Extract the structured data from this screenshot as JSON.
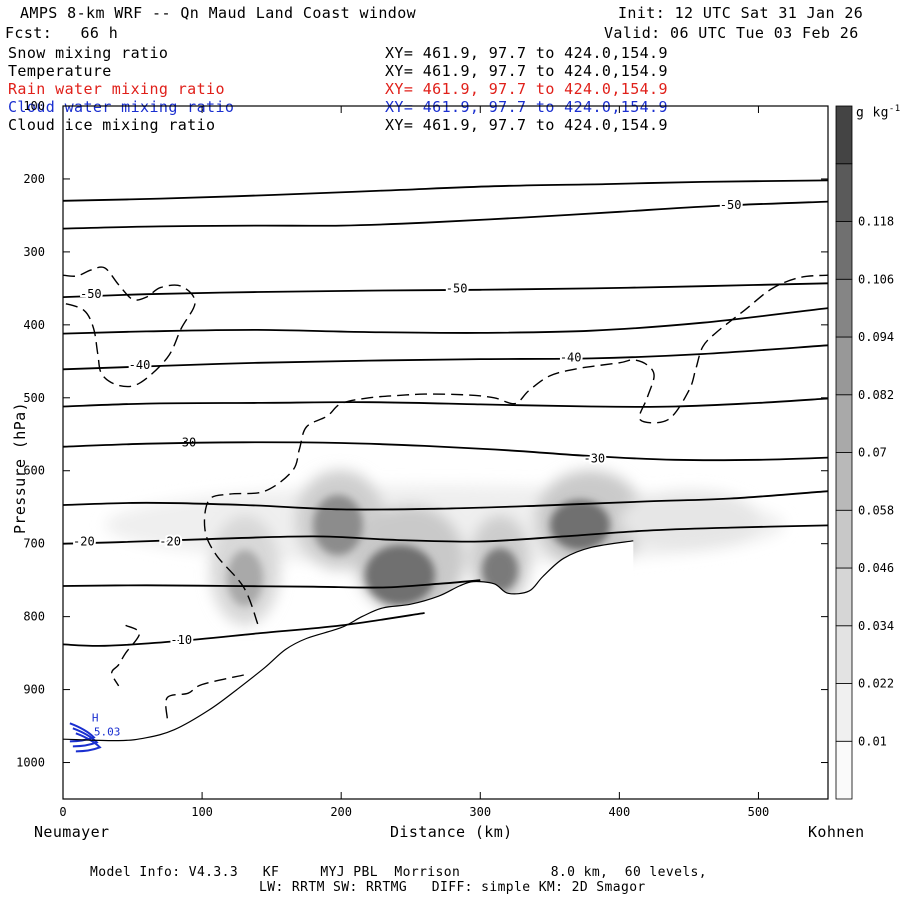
{
  "header": {
    "title": "AMPS 8-km WRF -- Qn Maud Land Coast window",
    "init": "Init: 12 UTC Sat 31 Jan 26",
    "fcst": "Fcst:   66 h",
    "valid": "Valid: 06 UTC Tue 03 Feb 26"
  },
  "fields": [
    {
      "name": "Snow mixing ratio",
      "xy": "XY= 461.9, 97.7 to 424.0,154.9",
      "color": "#000000"
    },
    {
      "name": "Temperature",
      "xy": "XY= 461.9, 97.7 to 424.0,154.9",
      "color": "#000000"
    },
    {
      "name": "Rain water mixing ratio",
      "xy": "XY= 461.9, 97.7 to 424.0,154.9",
      "color": "#e0201a"
    },
    {
      "name": "Cloud water mixing ratio",
      "xy": "XY= 461.9, 97.7 to 424.0,154.9",
      "color": "#1a2fd0"
    },
    {
      "name": "Cloud ice mixing ratio",
      "xy": "XY= 461.9, 97.7 to 424.0,154.9",
      "color": "#000000"
    }
  ],
  "footer": {
    "line1": "Model Info: V4.3.3   KF     MYJ PBL  Morrison           8.0 km,  60 levels,",
    "line2": "LW: RRTM SW: RRTMG   DIFF: simple KM: 2D Smagor"
  },
  "chart_data": {
    "type": "cross-section",
    "xlabel": "Distance (km)",
    "ylabel": "Pressure (hPa)",
    "xlim": [
      0,
      550
    ],
    "ylim": [
      1050,
      100
    ],
    "x_ticks": [
      0,
      100,
      200,
      300,
      400,
      500
    ],
    "y_ticks": [
      100,
      200,
      300,
      400,
      500,
      600,
      700,
      800,
      900,
      1000
    ],
    "x_endpoints": {
      "left": "Neumayer",
      "right": "Kohnen"
    },
    "colorbar": {
      "unit": "g kg",
      "unit_exp": "-1",
      "labels": [
        "0.01",
        "0.022",
        "0.034",
        "0.046",
        "0.058",
        "0.07",
        "0.082",
        "0.094",
        "0.106",
        "0.118"
      ],
      "colors": [
        "#fafafa",
        "#f0f0f0",
        "#e3e3e3",
        "#d6d6d6",
        "#c8c8c8",
        "#b9b9b9",
        "#a9a9a9",
        "#989898",
        "#858585",
        "#707070",
        "#5a5a5a",
        "#444444"
      ]
    },
    "temperature_contours": [
      {
        "label": "-10",
        "points": [
          [
            0,
            838
          ],
          [
            30,
            840
          ],
          [
            80,
            834
          ],
          [
            140,
            823
          ],
          [
            200,
            812
          ],
          [
            260,
            795
          ]
        ],
        "label_at": [
          85,
          832
        ]
      },
      {
        "label": "-20",
        "points": [
          [
            0,
            700
          ],
          [
            40,
            698
          ],
          [
            100,
            694
          ],
          [
            180,
            690
          ],
          [
            240,
            695
          ],
          [
            300,
            697
          ],
          [
            360,
            690
          ],
          [
            420,
            682
          ],
          [
            480,
            678
          ],
          [
            550,
            675
          ]
        ],
        "label_at": [
          77,
          697
        ]
      },
      {
        "label": "-20",
        "points": [
          [
            0,
            758
          ],
          [
            60,
            757
          ],
          [
            120,
            758
          ],
          [
            180,
            759
          ],
          [
            230,
            760
          ],
          [
            270,
            755
          ],
          [
            300,
            750
          ]
        ],
        "label_at": [
          15,
          697
        ]
      },
      {
        "label": "-30",
        "points": [
          [
            0,
            647
          ],
          [
            60,
            644
          ],
          [
            130,
            647
          ],
          [
            200,
            653
          ],
          [
            270,
            652
          ],
          [
            340,
            648
          ],
          [
            420,
            642
          ],
          [
            480,
            638
          ],
          [
            550,
            628
          ]
        ],
        "label_at": [
          88,
          561
        ]
      },
      {
        "label": "-30",
        "points": [
          [
            0,
            567
          ],
          [
            60,
            563
          ],
          [
            130,
            561
          ],
          [
            200,
            562
          ],
          [
            260,
            566
          ],
          [
            320,
            572
          ],
          [
            380,
            580
          ],
          [
            440,
            585
          ],
          [
            500,
            585
          ],
          [
            550,
            582
          ]
        ],
        "label_at": [
          382,
          583
        ]
      },
      {
        "label": "",
        "points": [
          [
            0,
            512
          ],
          [
            60,
            508
          ],
          [
            140,
            507
          ],
          [
            220,
            506
          ],
          [
            300,
            509
          ],
          [
            380,
            512
          ],
          [
            440,
            512
          ],
          [
            500,
            507
          ],
          [
            550,
            501
          ]
        ],
        "label_at": null
      },
      {
        "label": "-40",
        "points": [
          [
            0,
            461
          ],
          [
            60,
            457
          ],
          [
            140,
            452
          ],
          [
            220,
            449
          ],
          [
            300,
            447
          ],
          [
            380,
            446
          ],
          [
            460,
            440
          ],
          [
            550,
            428
          ]
        ],
        "label_at": [
          55,
          455
        ]
      },
      {
        "label": "-40",
        "points": [
          [
            0,
            412
          ],
          [
            60,
            409
          ],
          [
            140,
            407
          ],
          [
            220,
            410
          ],
          [
            300,
            411
          ],
          [
            380,
            408
          ],
          [
            460,
            397
          ],
          [
            550,
            377
          ]
        ],
        "label_at": [
          365,
          445
        ]
      },
      {
        "label": "-50",
        "points": [
          [
            0,
            362
          ],
          [
            60,
            358
          ],
          [
            140,
            355
          ],
          [
            220,
            353
          ],
          [
            300,
            352
          ],
          [
            380,
            350
          ],
          [
            460,
            347
          ],
          [
            550,
            343
          ]
        ],
        "label_at": [
          283,
          350
        ]
      },
      {
        "label": "-50",
        "points": [
          [
            0,
            268
          ],
          [
            70,
            265
          ],
          [
            140,
            264
          ],
          [
            200,
            264
          ],
          [
            260,
            260
          ],
          [
            330,
            253
          ],
          [
            400,
            245
          ],
          [
            470,
            237
          ],
          [
            550,
            231
          ]
        ],
        "label_at": [
          20,
          358
        ]
      },
      {
        "label": "-50",
        "points": [
          [
            0,
            230
          ],
          [
            70,
            227
          ],
          [
            150,
            222
          ],
          [
            230,
            216
          ],
          [
            310,
            210
          ],
          [
            390,
            207
          ],
          [
            460,
            204
          ],
          [
            550,
            202
          ]
        ],
        "label_at": [
          480,
          236
        ]
      }
    ],
    "ice_contour_dashed": [
      [
        [
          0,
          332
        ],
        [
          10,
          333
        ],
        [
          20,
          325
        ],
        [
          30,
          322
        ],
        [
          40,
          345
        ],
        [
          50,
          365
        ],
        [
          60,
          362
        ],
        [
          70,
          349
        ],
        [
          85,
          347
        ],
        [
          95,
          369
        ],
        [
          85,
          405
        ],
        [
          75,
          445
        ],
        [
          55,
          480
        ],
        [
          40,
          483
        ],
        [
          28,
          468
        ],
        [
          25,
          440
        ],
        [
          22,
          405
        ],
        [
          15,
          380
        ],
        [
          0,
          370
        ]
      ],
      [
        [
          140,
          810
        ],
        [
          130,
          760
        ],
        [
          110,
          715
        ],
        [
          102,
          680
        ],
        [
          105,
          640
        ],
        [
          120,
          632
        ],
        [
          145,
          628
        ],
        [
          165,
          600
        ],
        [
          170,
          570
        ],
        [
          175,
          540
        ],
        [
          190,
          525
        ],
        [
          200,
          508
        ],
        [
          220,
          500
        ],
        [
          240,
          497
        ],
        [
          260,
          495
        ],
        [
          290,
          496
        ],
        [
          310,
          500
        ],
        [
          325,
          508
        ],
        [
          335,
          490
        ],
        [
          350,
          470
        ],
        [
          370,
          460
        ],
        [
          400,
          452
        ],
        [
          410,
          448
        ],
        [
          420,
          455
        ],
        [
          425,
          470
        ],
        [
          420,
          500
        ],
        [
          415,
          530
        ],
        [
          435,
          530
        ],
        [
          450,
          490
        ],
        [
          455,
          460
        ],
        [
          460,
          430
        ],
        [
          470,
          410
        ],
        [
          490,
          380
        ],
        [
          510,
          350
        ],
        [
          530,
          335
        ],
        [
          550,
          332
        ]
      ],
      [
        [
          45,
          812
        ],
        [
          55,
          823
        ],
        [
          45,
          850
        ],
        [
          40,
          866
        ],
        [
          35,
          877
        ],
        [
          40,
          895
        ]
      ],
      [
        [
          130,
          880
        ],
        [
          100,
          893
        ],
        [
          90,
          905
        ],
        [
          75,
          911
        ],
        [
          75,
          940
        ]
      ]
    ],
    "terrain": [
      [
        0,
        968
      ],
      [
        40,
        970
      ],
      [
        60,
        966
      ],
      [
        80,
        955
      ],
      [
        105,
        928
      ],
      [
        125,
        900
      ],
      [
        145,
        870
      ],
      [
        160,
        845
      ],
      [
        175,
        830
      ],
      [
        200,
        815
      ],
      [
        215,
        800
      ],
      [
        230,
        788
      ],
      [
        250,
        783
      ],
      [
        270,
        772
      ],
      [
        285,
        758
      ],
      [
        295,
        752
      ],
      [
        310,
        755
      ],
      [
        320,
        768
      ],
      [
        335,
        765
      ],
      [
        345,
        745
      ],
      [
        360,
        720
      ],
      [
        380,
        705
      ],
      [
        410,
        696
      ]
    ],
    "cloud_water": {
      "label": "5.03",
      "label2": "H",
      "at_km": 15,
      "at_hpa": 960
    }
  }
}
